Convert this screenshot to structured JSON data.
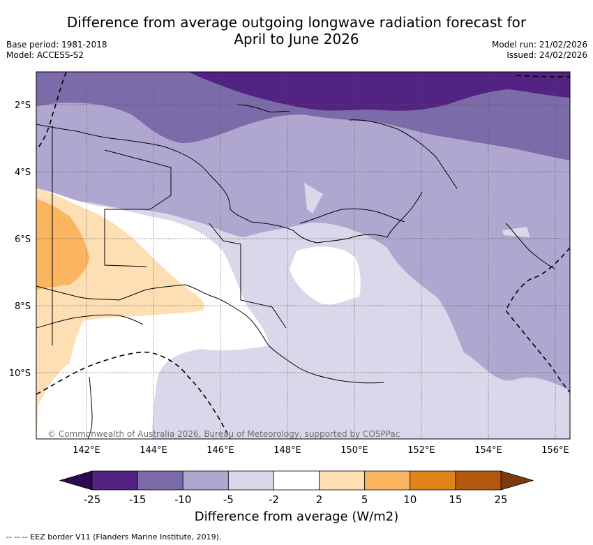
{
  "title": {
    "line1": "Difference from average outgoing longwave radiation forecast for",
    "line2": "April to June 2026"
  },
  "meta": {
    "base_period": "Base period: 1981-2018",
    "model": "Model: ACCESS-S2",
    "model_run": "Model run: 21/02/2026",
    "issued": "Issued: 24/02/2026"
  },
  "map": {
    "lat_labels": [
      "2°S",
      "4°S",
      "6°S",
      "8°S",
      "10°S"
    ],
    "lon_labels": [
      "142°E",
      "144°E",
      "146°E",
      "148°E",
      "150°E",
      "152°E",
      "154°E",
      "156°E"
    ],
    "copyright": "© Commonwealth of Australia 2026, Bureau of Meteorology, supported by COSPPac"
  },
  "colorbar": {
    "title": "Difference from average (W/m2)",
    "tick_labels": [
      "-25",
      "-15",
      "-10",
      "-5",
      "-2",
      "2",
      "5",
      "10",
      "15",
      "25"
    ],
    "colors": [
      "#532383",
      "#7c6ba9",
      "#afa7d0",
      "#d9d8ea",
      "#ffffff",
      "#fddfb3",
      "#fbb561",
      "#e0831a",
      "#b4580e"
    ],
    "low_extend_color": "#2d0a50",
    "high_extend_color": "#7b3a0c"
  },
  "legend": {
    "eez": "--  --  -- EEZ border V11 (Flanders Marine Institute, 2019)."
  }
}
